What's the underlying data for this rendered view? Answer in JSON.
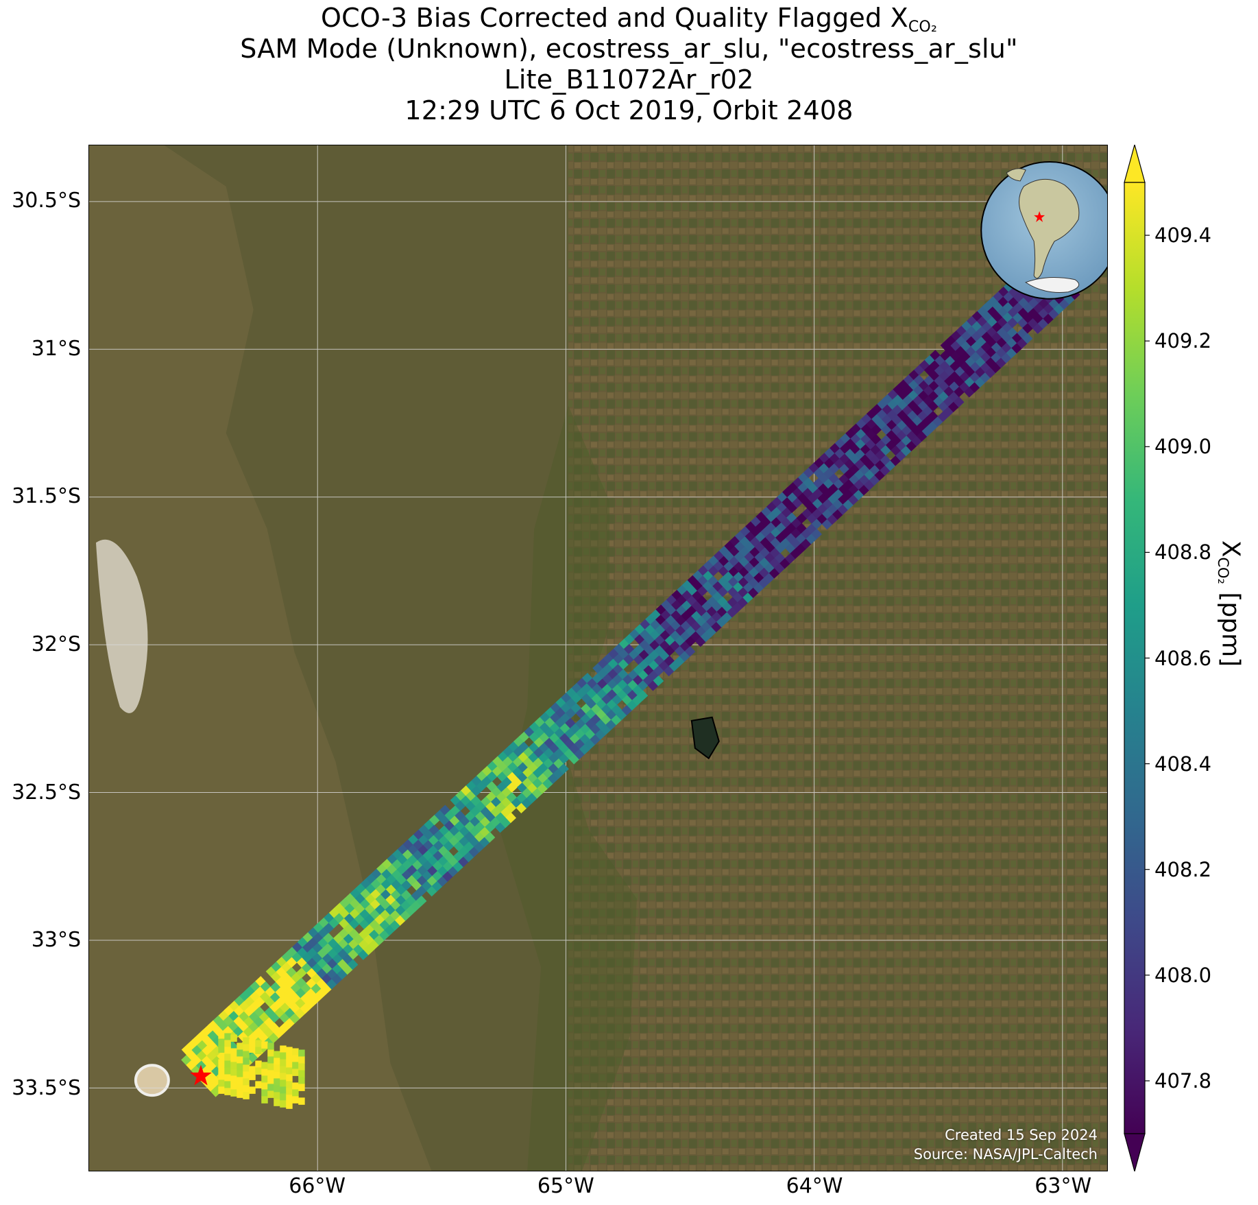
{
  "title": {
    "line1_prefix": "OCO-3 Bias Corrected and Quality Flagged X",
    "line1_sub": "CO₂",
    "line2": "SAM Mode (Unknown), ecostress_ar_slu, \"ecostress_ar_slu\"",
    "line3": "Lite_B11072Ar_r02",
    "line4": "12:29 UTC 6 Oct 2019, Orbit 2408"
  },
  "map": {
    "lat_ticks": [
      "30.5°S",
      "31°S",
      "31.5°S",
      "32°S",
      "32.5°S",
      "33°S",
      "33.5°S"
    ],
    "lon_ticks": [
      "66°W",
      "65°W",
      "64°W",
      "63°W"
    ],
    "extent": {
      "lon": [
        -66.92,
        -62.82
      ],
      "lat": [
        -33.78,
        -30.31
      ]
    },
    "grid": true,
    "target_lon": -66.47,
    "target_lat": -33.46,
    "target_marker": "red-star",
    "inset_globe": "south-america-globe-with-red-star"
  },
  "credit": {
    "created": "Created 15 Sep 2024",
    "source": "Source: NASA/JPL-Caltech"
  },
  "colorbar": {
    "label_prefix": "X",
    "label_sub": "CO₂",
    "label_suffix": " [ppm]",
    "ticks": [
      "407.8",
      "408.0",
      "408.2",
      "408.4",
      "408.6",
      "408.8",
      "409.0",
      "409.2",
      "409.4"
    ],
    "range": [
      407.7,
      409.5
    ],
    "colormap": "viridis",
    "extend": "both"
  },
  "colors": {
    "viridis": [
      "#440154",
      "#482878",
      "#3e4989",
      "#31688e",
      "#26828e",
      "#1f9e89",
      "#35b779",
      "#6ece58",
      "#b5de2b",
      "#fde725"
    ],
    "star": "#ff0000",
    "grid": "#d8d8d8"
  }
}
